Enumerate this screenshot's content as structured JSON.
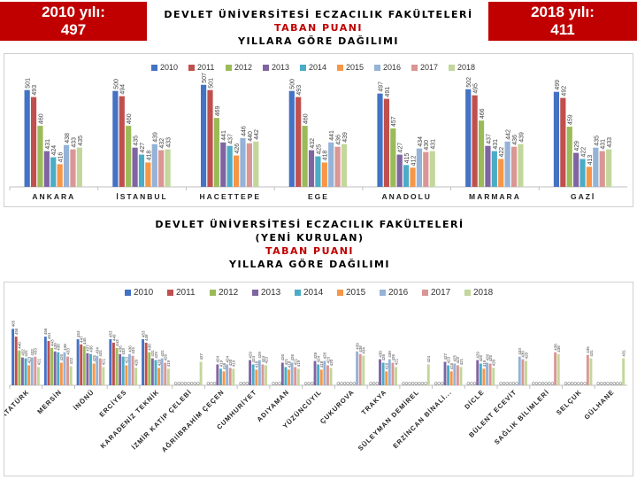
{
  "header": {
    "left_badge": {
      "line1": "2010 yılı:",
      "line2": "497"
    },
    "right_badge": {
      "line1": "2018 yılı:",
      "line2": "411"
    }
  },
  "colors": {
    "2010": "#4472c4",
    "2011": "#c0504d",
    "2012": "#9bbb59",
    "2013": "#8064a2",
    "2014": "#4bacc6",
    "2015": "#f79646",
    "2016": "#95b3d7",
    "2017": "#da9694",
    "2018": "#c3d69b",
    "title_red": "#c00000"
  },
  "chart_data": [
    {
      "type": "bar",
      "title": "DEVLET ÜNİVERSİTESİ ECZACILIK FAKÜLTELERİ",
      "subtitle": "TABAN PUANI",
      "title2": "YILLARA GÖRE DAĞILIMI",
      "legend": [
        "2010",
        "2011",
        "2012",
        "2013",
        "2014",
        "2015",
        "2016",
        "2017",
        "2018"
      ],
      "legend_position": "top",
      "categories": [
        "ANKARA",
        "İSTANBUL",
        "HACETTEPE",
        "EGE",
        "ANADOLU",
        "MARMARA",
        "GAZİ"
      ],
      "values": [
        [
          501,
          493,
          460,
          431,
          424,
          416,
          438,
          433,
          435
        ],
        [
          500,
          494,
          460,
          435,
          427,
          418,
          439,
          432,
          433
        ],
        [
          507,
          501,
          469,
          441,
          437,
          426,
          446,
          440,
          442
        ],
        [
          500,
          493,
          460,
          432,
          425,
          418,
          441,
          436,
          439
        ],
        [
          497,
          491,
          457,
          427,
          415,
          412,
          434,
          430,
          431
        ],
        [
          502,
          495,
          466,
          437,
          431,
          422,
          442,
          436,
          439
        ],
        [
          499,
          492,
          459,
          429,
          422,
          413,
          435,
          431,
          433
        ]
      ],
      "ylim": [
        390,
        520
      ]
    },
    {
      "type": "bar",
      "title": "DEVLET ÜNİVERSİTESİ ECZACILIK FAKÜLTELERİ",
      "title2": "(YENİ KURULAN)",
      "subtitle": "TABAN PUANI",
      "title3": "YILLARA GÖRE DAĞILIMI",
      "legend": [
        "2010",
        "2011",
        "2012",
        "2013",
        "2014",
        "2015",
        "2016",
        "2017",
        "2018"
      ],
      "legend_position": "top",
      "categories": [
        "ATATÜRK",
        "MERSİN",
        "İNÖNÜ",
        "ERCİYES",
        "KARADENİZ TEKNİK",
        "İZMİR KATİP ÇELEBİ",
        "AĞRIİBRAHİM ÇEÇEN",
        "CUMHURİYET",
        "ADIYAMAN",
        "YÜZÜNCÜYIL",
        "ÇUKUROVA",
        "TRAKYA",
        "SÜLEYMAN DEMİREL",
        "ERZİNCAN BİNALİ...",
        "DİCLE",
        "BÜLENT ECEVİT",
        "SAĞLIK BİLİMLERİ",
        "SELÇUK",
        "GÜLHANE"
      ],
      "values": [
        [
          465,
          456,
          440,
          432,
          431,
          423,
          432,
          433,
          421
        ],
        [
          456,
          451,
          443,
          439,
          438,
          426,
          438,
          433,
          422
        ],
        [
          453,
          447,
          445,
          437,
          436,
          425,
          434,
          431,
          421
        ],
        [
          453,
          449,
          443,
          436,
          433,
          423,
          436,
          434,
          420
        ],
        [
          453,
          449,
          438,
          431,
          429,
          420,
          431,
          426,
          419
        ],
        [
          0,
          0,
          0,
          0,
          0,
          0,
          0,
          0,
          427
        ],
        [
          0,
          0,
          0,
          424,
          419,
          416,
          424,
          420,
          419
        ],
        [
          0,
          0,
          0,
          429,
          424,
          418,
          429,
          424,
          423
        ],
        [
          0,
          0,
          0,
          426,
          421,
          418,
          426,
          421,
          419
        ],
        [
          0,
          0,
          0,
          428,
          424,
          418,
          428,
          423,
          420
        ],
        [
          0,
          0,
          0,
          0,
          0,
          0,
          439,
          436,
          434
        ],
        [
          0,
          0,
          0,
          430,
          426,
          416,
          430,
          426,
          421
        ],
        [
          0,
          0,
          0,
          0,
          0,
          0,
          0,
          0,
          424
        ],
        [
          0,
          0,
          0,
          427,
          423,
          416,
          425,
          423,
          421
        ],
        [
          0,
          0,
          0,
          429,
          425,
          419,
          426,
          425,
          420
        ],
        [
          0,
          0,
          0,
          0,
          0,
          0,
          433,
          430,
          428
        ],
        [
          0,
          0,
          0,
          0,
          0,
          0,
          0,
          438,
          436
        ],
        [
          0,
          0,
          0,
          0,
          0,
          0,
          0,
          435,
          431
        ],
        [
          0,
          0,
          0,
          0,
          0,
          0,
          0,
          0,
          431
        ]
      ],
      "ylim": [
        400,
        500
      ]
    }
  ]
}
